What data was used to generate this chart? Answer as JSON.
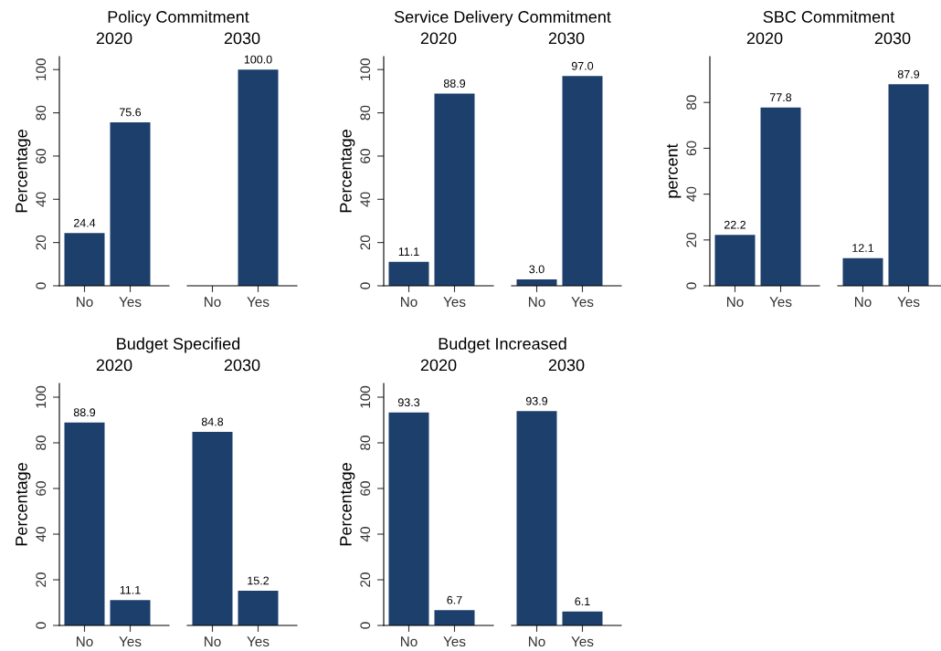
{
  "chart_data": [
    {
      "type": "bar",
      "title": "Policy Commitment",
      "subtitle": "2020",
      "ylabel": "Percentage",
      "categories": [
        "No",
        "Yes"
      ],
      "values": [
        24.4,
        75.6
      ],
      "value_labels": [
        "24.4",
        "75.6"
      ],
      "color": "#1c3f6b",
      "ylim": [
        0,
        106
      ],
      "yticks": [
        0,
        20,
        40,
        60,
        80,
        100
      ]
    },
    {
      "type": "bar",
      "subtitle": "2030",
      "categories": [
        "No",
        "Yes"
      ],
      "values": [
        null,
        100.0
      ],
      "value_labels": [
        null,
        "100.0"
      ],
      "color": "#1c3f6b",
      "tick_labels": "x"
    },
    {
      "type": "bar",
      "title": "Service Delivery Commitment",
      "subtitle": "2020",
      "ylabel": "Percentage",
      "categories": [
        "No",
        "Yes"
      ],
      "values": [
        11.1,
        88.9
      ],
      "value_labels": [
        "11.1",
        "88.9"
      ],
      "color": "#1c3f6b",
      "ylim": [
        0,
        106
      ],
      "yticks": [
        0,
        20,
        40,
        60,
        80,
        100
      ]
    },
    {
      "type": "bar",
      "subtitle": "2030",
      "categories": [
        "No",
        "Yes"
      ],
      "values": [
        3.0,
        97.0
      ],
      "value_labels": [
        "3.0",
        "97.0"
      ],
      "color": "#1c3f6b",
      "tick_labels": "x"
    },
    {
      "type": "bar",
      "title": "SBC Commitment",
      "subtitle": "2020",
      "ylabel": "percent",
      "categories": [
        "No",
        "Yes"
      ],
      "values": [
        22.2,
        77.8
      ],
      "value_labels": [
        "22.2",
        "77.8"
      ],
      "color": "#1c3f6b",
      "ylim": [
        0,
        100
      ],
      "yticks": [
        0,
        20,
        40,
        60,
        80
      ]
    },
    {
      "type": "bar",
      "subtitle": "2030",
      "categories": [
        "No",
        "Yes"
      ],
      "values": [
        12.1,
        87.9
      ],
      "value_labels": [
        "12.1",
        "87.9"
      ],
      "color": "#1c3f6b",
      "tick_labels": "x"
    },
    {
      "type": "bar",
      "title": "Budget Specified",
      "subtitle": "2020",
      "ylabel": "Percentage",
      "categories": [
        "No",
        "Yes"
      ],
      "values": [
        88.9,
        11.1
      ],
      "value_labels": [
        "88.9",
        "11.1"
      ],
      "color": "#1c3f6b",
      "ylim": [
        0,
        106
      ],
      "yticks": [
        0,
        20,
        40,
        60,
        80,
        100
      ]
    },
    {
      "type": "bar",
      "subtitle": "2030",
      "categories": [
        "No",
        "Yes"
      ],
      "values": [
        84.8,
        15.2
      ],
      "value_labels": [
        "84.8",
        "15.2"
      ],
      "color": "#1c3f6b",
      "tick_labels": "x"
    },
    {
      "type": "bar",
      "title": "Budget Increased",
      "subtitle": "2020",
      "ylabel": "Percentage",
      "categories": [
        "No",
        "Yes"
      ],
      "values": [
        93.3,
        6.7
      ],
      "value_labels": [
        "93.3",
        "6.7"
      ],
      "color": "#1c3f6b",
      "ylim": [
        0,
        106
      ],
      "yticks": [
        0,
        20,
        40,
        60,
        80,
        100
      ]
    },
    {
      "type": "bar",
      "subtitle": "2030",
      "categories": [
        "No",
        "Yes"
      ],
      "values": [
        93.9,
        6.1
      ],
      "value_labels": [
        "93.9",
        "6.1"
      ],
      "color": "#1c3f6b",
      "tick_labels": "x"
    }
  ]
}
